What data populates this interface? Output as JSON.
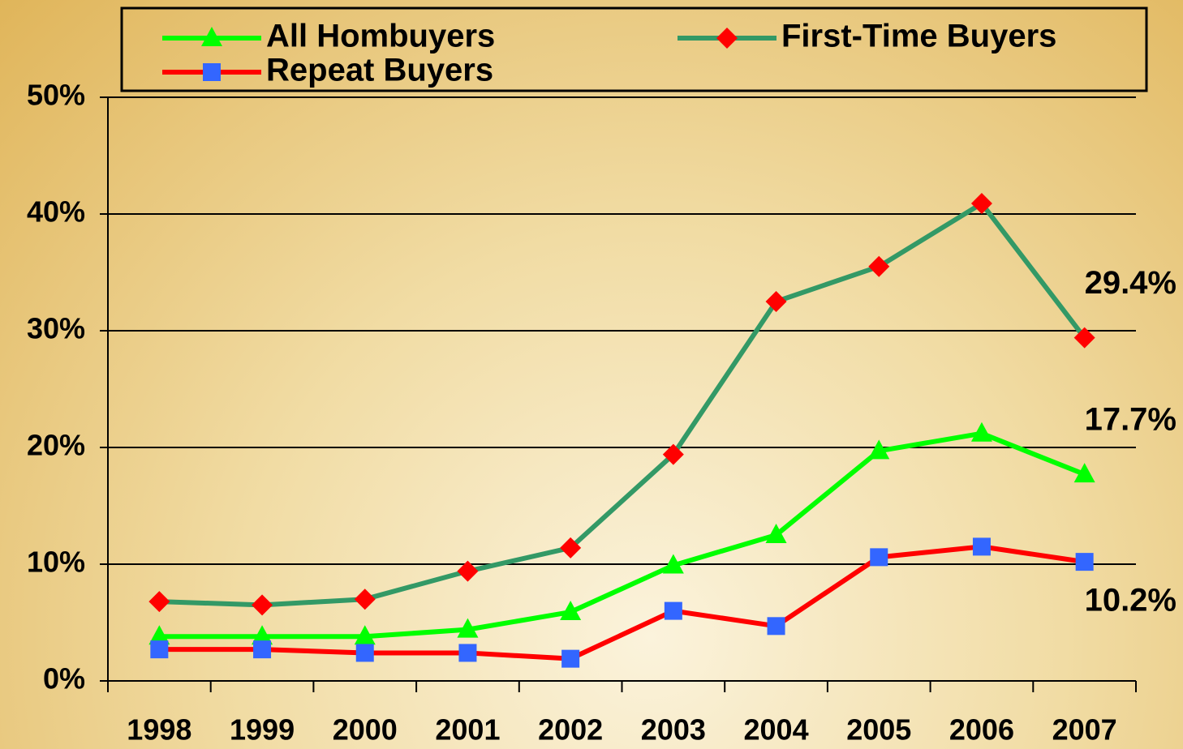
{
  "chart_data": {
    "type": "line",
    "categories": [
      "1998",
      "1999",
      "2000",
      "2001",
      "2002",
      "2003",
      "2004",
      "2005",
      "2006",
      "2007"
    ],
    "series": [
      {
        "name": "All Hombuyers",
        "color": "#00ff00",
        "line_color": "#00ff00",
        "marker": "triangle",
        "values": [
          3.8,
          3.8,
          3.8,
          4.4,
          5.9,
          9.9,
          12.5,
          19.7,
          21.2,
          17.7
        ],
        "value_labels": [
          null,
          null,
          null,
          null,
          null,
          null,
          null,
          null,
          null,
          "17.7%"
        ]
      },
      {
        "name": "First-Time Buyers",
        "color": "#ff0000",
        "line_color": "#339966",
        "marker": "diamond",
        "values": [
          6.8,
          6.5,
          7.0,
          9.4,
          11.4,
          19.4,
          32.5,
          35.5,
          40.9,
          29.4
        ],
        "value_labels": [
          null,
          null,
          null,
          null,
          null,
          null,
          null,
          null,
          null,
          "29.4%"
        ]
      },
      {
        "name": "Repeat Buyers",
        "color": "#3366ff",
        "line_color": "#ff0000",
        "marker": "square",
        "values": [
          2.7,
          2.7,
          2.4,
          2.4,
          1.9,
          6.0,
          4.7,
          10.6,
          11.5,
          10.2
        ],
        "value_labels": [
          null,
          null,
          null,
          null,
          null,
          null,
          null,
          null,
          null,
          "10.2%"
        ]
      }
    ],
    "ylim": [
      0,
      50
    ],
    "yticks": [
      {
        "value": 0,
        "label": "0%"
      },
      {
        "value": 10,
        "label": "10%"
      },
      {
        "value": 20,
        "label": "20%"
      },
      {
        "value": 30,
        "label": "30%"
      },
      {
        "value": 40,
        "label": "40%"
      },
      {
        "value": 50,
        "label": "50%"
      }
    ],
    "grid": true
  }
}
